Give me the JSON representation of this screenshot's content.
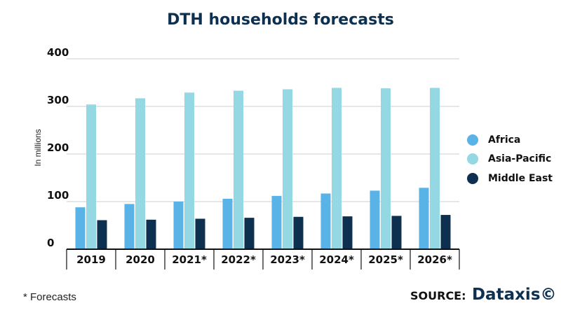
{
  "chart_data": {
    "type": "bar",
    "title": "DTH households forecasts",
    "ylabel": "In millions",
    "xlabel": "",
    "ylim": [
      0,
      400
    ],
    "yticks": [
      0,
      100,
      200,
      300,
      400
    ],
    "categories": [
      "2019",
      "2020",
      "2021*",
      "2022*",
      "2023*",
      "2024*",
      "2025*",
      "2026*"
    ],
    "series": [
      {
        "name": "Africa",
        "color": "#5ab3e6",
        "values": [
          88,
          95,
          100,
          106,
          112,
          117,
          123,
          129
        ]
      },
      {
        "name": "Asia-Pacific",
        "color": "#94d8e4",
        "values": [
          304,
          317,
          329,
          333,
          336,
          339,
          338,
          339
        ]
      },
      {
        "name": "Middle East",
        "color": "#0d3050",
        "values": [
          61,
          62,
          64,
          66,
          68,
          69,
          70,
          72
        ]
      }
    ],
    "grid": true,
    "legend_position": "right"
  },
  "footnote": "* Forecasts",
  "source": {
    "label": "SOURCE:",
    "brand": "Dataxis©"
  }
}
